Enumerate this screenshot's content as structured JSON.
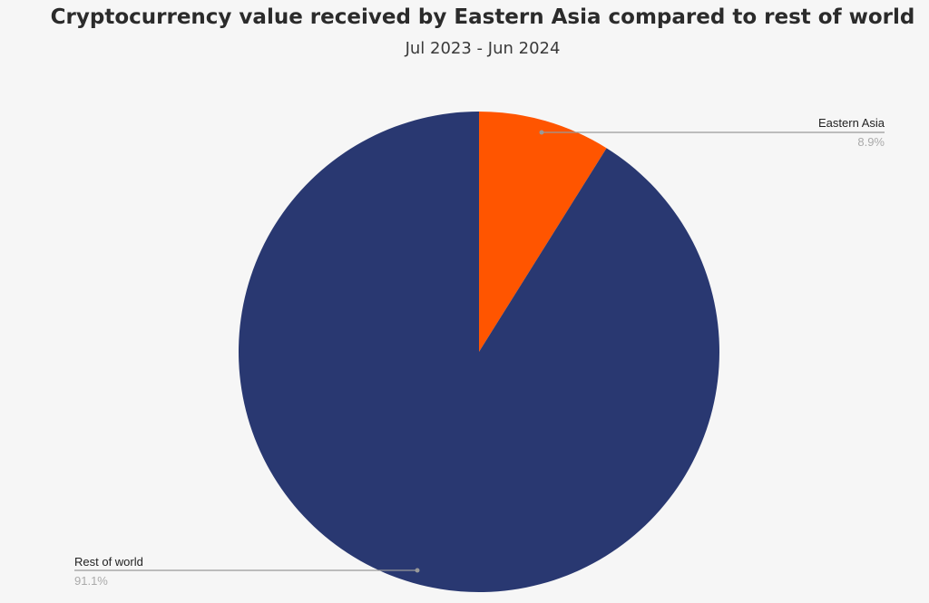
{
  "chart_data": {
    "type": "pie",
    "title": "Cryptocurrency value received by Eastern Asia compared to rest of world",
    "subtitle": "Jul 2023 - Jun 2024",
    "slices": [
      {
        "label": "Eastern Asia",
        "value": 8.9,
        "display": "8.9%",
        "color": "#ff5500"
      },
      {
        "label": "Rest of world",
        "value": 91.1,
        "display": "91.1%",
        "color": "#293871"
      }
    ],
    "start_angle": "12 o'clock",
    "direction": "clockwise"
  }
}
